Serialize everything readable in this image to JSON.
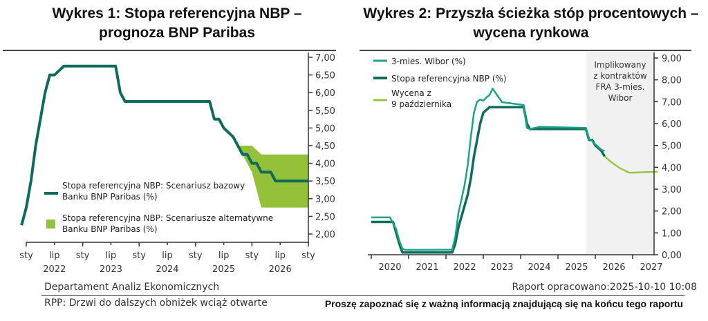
{
  "colors": {
    "dark_green": "#0f6b5a",
    "teal": "#1aa386",
    "lime": "#9cc43a",
    "band": "#95c13a",
    "shade": "#f1f1f1",
    "axis": "#333333"
  },
  "chart1": {
    "title_line1": "Wykres 1: Stopa referencyjna NBP –",
    "title_line2": "prognoza BNP Paribas",
    "legend": [
      {
        "label_line1": "Stopa referencyjna NBP: Scenariusz bazowy",
        "label_line2": "Banku BNP Paribas (%)"
      },
      {
        "label_line1": "Stopa referencyjna NBP: Scenariusze alternatywne",
        "label_line2": "Banku BNP Paribas (%)"
      }
    ],
    "x_month_labels": [
      "sty",
      "lip",
      "sty",
      "lip",
      "sty",
      "lip",
      "sty",
      "lip",
      "sty",
      "lip",
      "sty"
    ],
    "x_year_labels": [
      "2022",
      "2023",
      "2024",
      "2025",
      "2026"
    ],
    "y_ticks": [
      "7,00",
      "6,50",
      "6,00",
      "5,50",
      "5,00",
      "4,50",
      "4,00",
      "3,50",
      "3,00",
      "2,50",
      "2,00"
    ]
  },
  "chart2": {
    "title_line1": "Wykres 2: Przyszła ścieżka stóp procentowych –",
    "title_line2": "wycena rynkowa",
    "legend": [
      {
        "label": "3-mies. Wibor (%)"
      },
      {
        "label": "Stopa referencyjna NBP (%)"
      },
      {
        "label_line1": "Wycena z",
        "label_line2": "9 października"
      }
    ],
    "shade_label": [
      "Implikowany",
      "z kontraktów",
      "FRA 3-mies.",
      "Wibor"
    ],
    "x_labels": [
      "2020",
      "2021",
      "2022",
      "2023",
      "2024",
      "2025",
      "2026",
      "2027"
    ],
    "y_ticks": [
      "9,00",
      "8,00",
      "7,00",
      "6,00",
      "5,00",
      "4,00",
      "3,00",
      "2,00",
      "1,00",
      "0,00"
    ]
  },
  "footer": {
    "left_top": "Departament Analiz Ekonomicznych",
    "right_top": "Raport opracowano:2025-10-10 10:08",
    "left_bottom": "RPP: Drzwi do dalszych obniżek wciąż otwarte",
    "right_bottom": "Proszę zapoznać się z ważną informacją znajdującą się na końcu tego raportu"
  },
  "chart_data": [
    {
      "type": "line",
      "title": "Wykres 1: Stopa referencyjna NBP – prognoza BNP Paribas",
      "xlabel": "",
      "ylabel": "%",
      "ylim": [
        1.75,
        7.0
      ],
      "y_axis_position": "right",
      "x_range": [
        "2021-12",
        "2027-01"
      ],
      "series": [
        {
          "name": "Stopa referencyjna NBP: Scenariusz bazowy Banku BNP Paribas (%)",
          "x": [
            "2021-12",
            "2022-01",
            "2022-02",
            "2022-03",
            "2022-04",
            "2022-05",
            "2022-06",
            "2022-07",
            "2022-09",
            "2023-08",
            "2023-09",
            "2023-10",
            "2024-12",
            "2025-04",
            "2025-05",
            "2025-06",
            "2025-07",
            "2025-09",
            "2025-10",
            "2025-11",
            "2025-12",
            "2026-01",
            "2026-02",
            "2026-03",
            "2026-04",
            "2026-05",
            "2026-06",
            "2027-01"
          ],
          "values": [
            2.25,
            2.75,
            3.5,
            4.5,
            5.25,
            6.0,
            6.5,
            6.5,
            6.75,
            6.75,
            6.0,
            5.75,
            5.75,
            5.75,
            5.25,
            5.25,
            5.0,
            4.75,
            4.5,
            4.25,
            4.25,
            4.0,
            4.0,
            3.75,
            3.75,
            3.75,
            3.5,
            3.5
          ]
        },
        {
          "name": "Stopa referencyjna NBP: Scenariusze alternatywne Banku BNP Paribas (%)",
          "type": "area_band",
          "x": [
            "2025-10",
            "2026-01",
            "2026-03",
            "2027-01"
          ],
          "upper": [
            4.5,
            4.5,
            4.25,
            4.25
          ],
          "lower": [
            4.5,
            3.75,
            2.75,
            2.75
          ]
        }
      ],
      "x_tick_labels": [
        "sty",
        "lip",
        "sty",
        "lip",
        "sty",
        "lip",
        "sty",
        "lip",
        "sty",
        "lip",
        "sty"
      ],
      "x_year_labels": [
        "2022",
        "2023",
        "2024",
        "2025",
        "2026"
      ],
      "y_tick_labels": [
        "2,00",
        "2,50",
        "3,00",
        "3,50",
        "4,00",
        "4,50",
        "5,00",
        "5,50",
        "6,00",
        "6,50",
        "7,00"
      ],
      "legend_position": "lower-left",
      "grid": false
    },
    {
      "type": "line",
      "title": "Wykres 2: Przyszła ścieżka stóp procentowych – wycena rynkowa",
      "xlabel": "",
      "ylabel": "%",
      "ylim": [
        0,
        9
      ],
      "y_axis_position": "right",
      "x_range": [
        "2019-07",
        "2027-03"
      ],
      "shaded_region": {
        "from": "2025-10",
        "to": "2027-03",
        "label": "Implikowany z kontraktów FRA 3-mies. Wibor"
      },
      "series": [
        {
          "name": "3-mies. Wibor (%)",
          "x": [
            "2019-07",
            "2020-01",
            "2020-03",
            "2020-04",
            "2020-05",
            "2020-06",
            "2021-09",
            "2021-10",
            "2021-11",
            "2021-12",
            "2022-01",
            "2022-02",
            "2022-03",
            "2022-04",
            "2022-05",
            "2022-06",
            "2022-07",
            "2022-08",
            "2022-09",
            "2022-10",
            "2023-01",
            "2023-08",
            "2023-09",
            "2023-10",
            "2024-01",
            "2025-04",
            "2025-05",
            "2025-06",
            "2025-07",
            "2025-09",
            "2025-10"
          ],
          "values": [
            1.71,
            1.71,
            1.17,
            0.64,
            0.28,
            0.22,
            0.23,
            0.83,
            1.9,
            2.54,
            3.2,
            4.1,
            5.4,
            6.5,
            7.0,
            7.1,
            7.05,
            7.2,
            7.3,
            7.6,
            6.98,
            6.85,
            5.8,
            5.75,
            5.85,
            5.8,
            5.3,
            5.2,
            5.05,
            4.8,
            4.75
          ]
        },
        {
          "name": "Stopa referencyjna NBP (%)",
          "x": [
            "2019-07",
            "2020-02",
            "2020-03",
            "2020-04",
            "2020-05",
            "2020-06",
            "2021-09",
            "2021-10",
            "2021-11",
            "2021-12",
            "2022-01",
            "2022-02",
            "2022-03",
            "2022-04",
            "2022-05",
            "2022-06",
            "2022-07",
            "2022-09",
            "2023-08",
            "2023-09",
            "2023-10",
            "2025-04",
            "2025-05",
            "2025-06",
            "2025-07",
            "2025-09",
            "2025-10"
          ],
          "values": [
            1.5,
            1.5,
            1.0,
            0.5,
            0.1,
            0.1,
            0.1,
            0.5,
            1.25,
            1.75,
            2.25,
            2.75,
            3.5,
            4.5,
            5.25,
            6.0,
            6.5,
            6.75,
            6.75,
            6.0,
            5.75,
            5.75,
            5.25,
            5.25,
            5.0,
            4.75,
            4.5
          ]
        },
        {
          "name": "Wycena z 9 października",
          "x": [
            "2025-10",
            "2025-12",
            "2026-03",
            "2026-06",
            "2027-03"
          ],
          "values": [
            4.5,
            4.25,
            3.95,
            3.75,
            3.8
          ]
        }
      ],
      "x_tick_labels": [
        "2020",
        "2021",
        "2022",
        "2023",
        "2024",
        "2025",
        "2026",
        "2027"
      ],
      "y_tick_labels": [
        "0,00",
        "1,00",
        "2,00",
        "3,00",
        "4,00",
        "5,00",
        "6,00",
        "7,00",
        "8,00",
        "9,00"
      ],
      "legend_position": "upper-left",
      "grid": false
    }
  ]
}
